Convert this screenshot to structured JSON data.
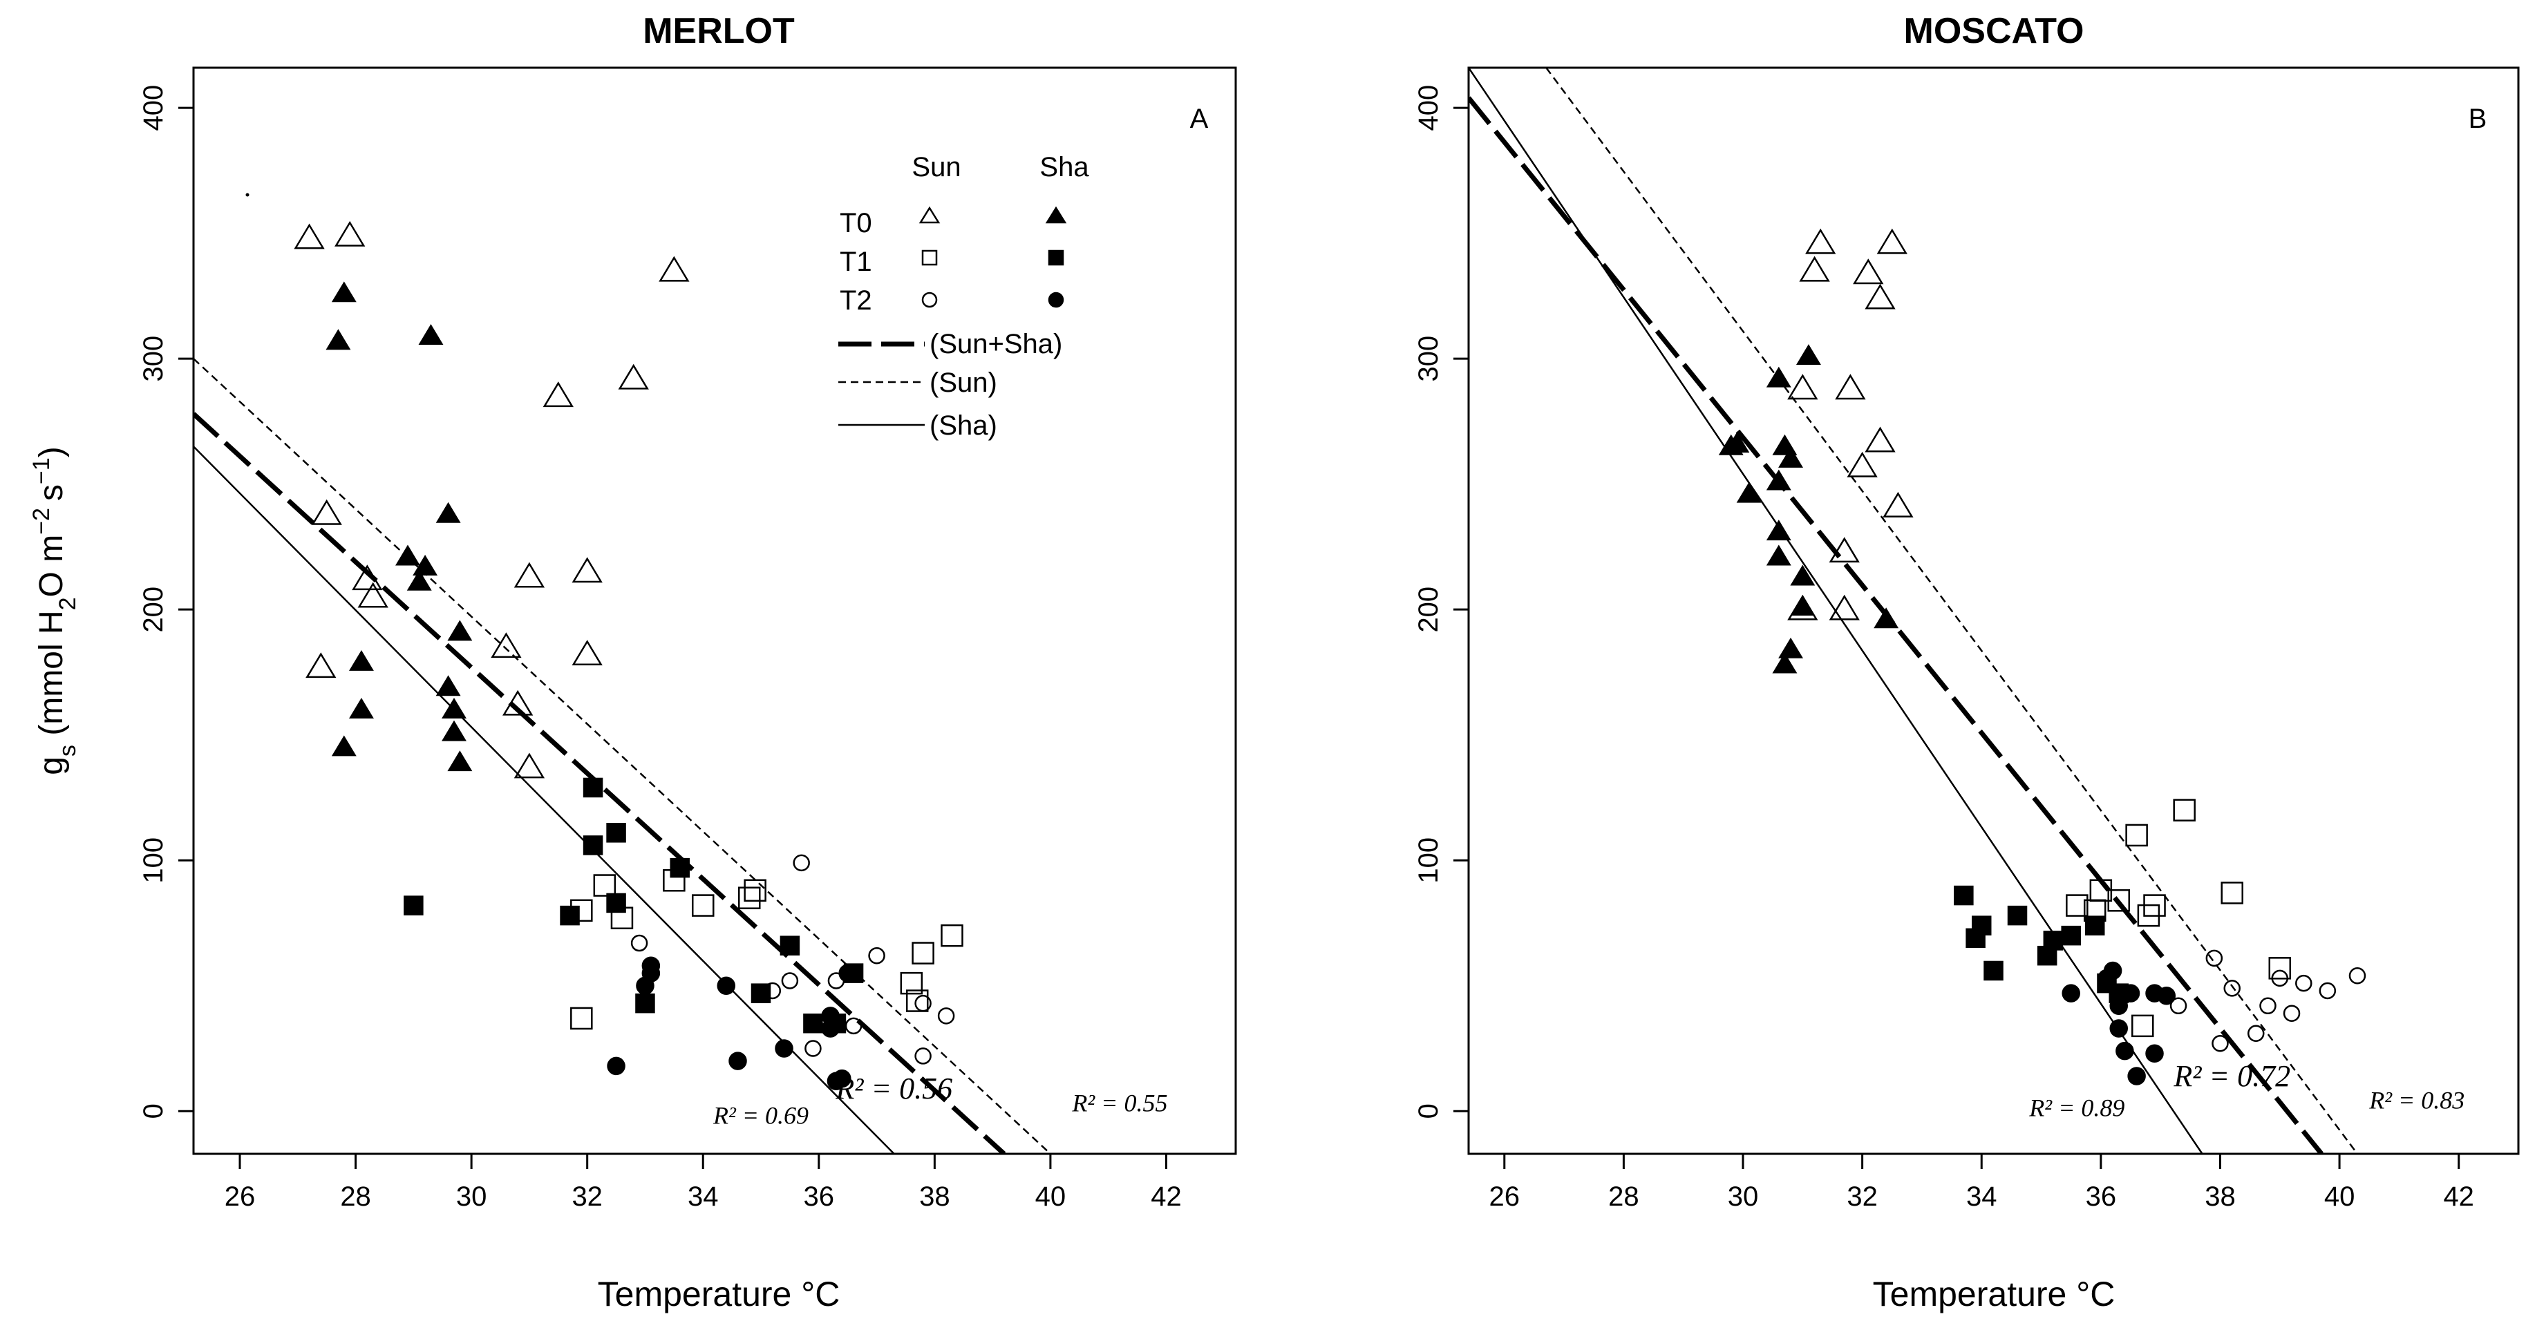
{
  "chart_data": [
    {
      "type": "scatter",
      "title": "MERLOT",
      "panel_label": "A",
      "xlabel": "Temperature °C",
      "ylabel": {
        "g": "g",
        "s": "s",
        "main": " (mmol H",
        "two": "2",
        "o_m": "O m",
        "neg2": "−2",
        "s2": "s",
        "neg1": "−1",
        "close": ")"
      },
      "xlim": [
        25.2,
        43.2
      ],
      "ylim": [
        -17,
        416
      ],
      "xticks": [
        "26",
        "28",
        "30",
        "32",
        "34",
        "36",
        "38",
        "40",
        "42"
      ],
      "yticks": [
        "0",
        "100",
        "200",
        "300",
        "400"
      ],
      "legend": {
        "col_sun": "Sun",
        "col_sha": "Sha",
        "rows": [
          "T0",
          "T1",
          "T2"
        ],
        "lines": [
          "(Sun+Sha)",
          "(Sun)",
          "(Sha)"
        ]
      },
      "series": [
        {
          "name": "T0 Sun",
          "marker": "triangle-open",
          "points": [
            [
              27.2,
              348
            ],
            [
              27.9,
              349
            ],
            [
              27.5,
              238
            ],
            [
              27.4,
              177
            ],
            [
              28.2,
              212
            ],
            [
              28.3,
              205
            ],
            [
              30.6,
              185
            ],
            [
              30.8,
              162
            ],
            [
              31.0,
              137
            ],
            [
              31.0,
              213
            ],
            [
              31.5,
              285
            ],
            [
              32.0,
              215
            ],
            [
              32.0,
              182
            ],
            [
              32.8,
              292
            ],
            [
              33.5,
              335
            ]
          ]
        },
        {
          "name": "T0 Sha",
          "marker": "triangle-filled",
          "points": [
            [
              27.8,
              326
            ],
            [
              27.7,
              307
            ],
            [
              27.8,
              145
            ],
            [
              28.1,
              179
            ],
            [
              28.1,
              160
            ],
            [
              28.9,
              221
            ],
            [
              29.1,
              211
            ],
            [
              29.2,
              217
            ],
            [
              29.3,
              309
            ],
            [
              29.6,
              238
            ],
            [
              29.6,
              169
            ],
            [
              29.7,
              160
            ],
            [
              29.7,
              151
            ],
            [
              29.8,
              191
            ],
            [
              29.8,
              139
            ]
          ]
        },
        {
          "name": "T1 Sun",
          "marker": "square-open",
          "points": [
            [
              31.9,
              37
            ],
            [
              31.9,
              80
            ],
            [
              32.3,
              90
            ],
            [
              32.6,
              77
            ],
            [
              33.5,
              92
            ],
            [
              34.0,
              82
            ],
            [
              34.8,
              85
            ],
            [
              34.9,
              88
            ],
            [
              37.6,
              51
            ],
            [
              37.7,
              44
            ],
            [
              37.8,
              63
            ],
            [
              38.3,
              70
            ]
          ]
        },
        {
          "name": "T1 Sha",
          "marker": "square-filled",
          "points": [
            [
              29.0,
              82
            ],
            [
              31.7,
              78
            ],
            [
              32.1,
              129
            ],
            [
              32.1,
              106
            ],
            [
              32.5,
              111
            ],
            [
              32.5,
              83
            ],
            [
              33.0,
              43
            ],
            [
              33.6,
              97
            ],
            [
              35.0,
              47
            ],
            [
              35.5,
              66
            ],
            [
              35.9,
              35
            ],
            [
              36.3,
              35
            ],
            [
              36.6,
              55
            ]
          ]
        },
        {
          "name": "T2 Sun",
          "marker": "circle-open",
          "points": [
            [
              32.9,
              67
            ],
            [
              35.2,
              48
            ],
            [
              35.5,
              52
            ],
            [
              35.7,
              99
            ],
            [
              35.9,
              25
            ],
            [
              36.3,
              52
            ],
            [
              36.6,
              34
            ],
            [
              37.0,
              62
            ],
            [
              37.8,
              22
            ],
            [
              37.8,
              43
            ],
            [
              38.2,
              38
            ]
          ]
        },
        {
          "name": "T2 Sha",
          "marker": "circle-filled",
          "points": [
            [
              32.5,
              18
            ],
            [
              33.0,
              50
            ],
            [
              33.1,
              55
            ],
            [
              33.1,
              58
            ],
            [
              34.4,
              50
            ],
            [
              34.6,
              20
            ],
            [
              35.4,
              25
            ],
            [
              36.2,
              38
            ],
            [
              36.2,
              33
            ],
            [
              36.3,
              12
            ],
            [
              36.4,
              13
            ],
            [
              36.5,
              55
            ]
          ]
        }
      ],
      "fits": [
        {
          "name": "(Sun+Sha)",
          "style": "long-dash",
          "from": [
            25.2,
            278
          ],
          "to": [
            39.2,
            -17
          ]
        },
        {
          "name": "(Sun)",
          "style": "short-dash",
          "from": [
            25.2,
            300
          ],
          "to": [
            40.0,
            -17
          ]
        },
        {
          "name": "(Sha)",
          "style": "solid",
          "from": [
            25.2,
            265
          ],
          "to": [
            37.3,
            -17
          ]
        }
      ],
      "r2_labels": [
        {
          "text": "R² = 0.69",
          "x": 35.0,
          "y": -5,
          "size": "small"
        },
        {
          "text": "R² = 0.56",
          "x": 37.3,
          "y": 5,
          "size": "large"
        },
        {
          "text": "R² = 0.55",
          "x": 41.2,
          "y": 0,
          "size": "small"
        }
      ]
    },
    {
      "type": "scatter",
      "title": "MOSCATO",
      "panel_label": "B",
      "xlabel": "Temperature °C",
      "xlim": [
        25.4,
        43.0
      ],
      "ylim": [
        -17,
        416
      ],
      "xticks": [
        "26",
        "28",
        "30",
        "32",
        "34",
        "36",
        "38",
        "40",
        "42"
      ],
      "yticks": [
        "0",
        "100",
        "200",
        "300",
        "400"
      ],
      "series": [
        {
          "name": "T0 Sun",
          "marker": "triangle-open",
          "points": [
            [
              31.0,
              288
            ],
            [
              31.0,
              200
            ],
            [
              31.2,
              335
            ],
            [
              31.3,
              346
            ],
            [
              31.7,
              223
            ],
            [
              31.7,
              200
            ],
            [
              31.8,
              288
            ],
            [
              32.0,
              257
            ],
            [
              32.1,
              334
            ],
            [
              32.3,
              324
            ],
            [
              32.3,
              267
            ],
            [
              32.5,
              346
            ],
            [
              32.6,
              241
            ]
          ]
        },
        {
          "name": "T0 Sha",
          "marker": "triangle-filled",
          "points": [
            [
              29.8,
              265
            ],
            [
              29.9,
              266
            ],
            [
              30.1,
              246
            ],
            [
              30.6,
              292
            ],
            [
              30.6,
              251
            ],
            [
              30.6,
              231
            ],
            [
              30.6,
              221
            ],
            [
              30.7,
              265
            ],
            [
              30.7,
              178
            ],
            [
              30.8,
              260
            ],
            [
              30.8,
              184
            ],
            [
              31.0,
              213
            ],
            [
              31.0,
              201
            ],
            [
              31.1,
              301
            ],
            [
              32.4,
              196
            ]
          ]
        },
        {
          "name": "T1 Sun",
          "marker": "square-open",
          "points": [
            [
              35.6,
              82
            ],
            [
              35.9,
              80
            ],
            [
              36.0,
              88
            ],
            [
              36.3,
              84
            ],
            [
              36.6,
              110
            ],
            [
              36.8,
              78
            ],
            [
              36.9,
              82
            ],
            [
              37.4,
              120
            ],
            [
              38.2,
              87
            ],
            [
              39.0,
              57
            ],
            [
              36.7,
              34
            ]
          ]
        },
        {
          "name": "T1 Sha",
          "marker": "square-filled",
          "points": [
            [
              33.7,
              86
            ],
            [
              33.9,
              69
            ],
            [
              34.0,
              74
            ],
            [
              34.2,
              56
            ],
            [
              34.6,
              78
            ],
            [
              35.1,
              62
            ],
            [
              35.2,
              68
            ],
            [
              35.5,
              70
            ],
            [
              35.9,
              74
            ],
            [
              36.1,
              51
            ],
            [
              36.3,
              47
            ]
          ]
        },
        {
          "name": "T2 Sun",
          "marker": "circle-open",
          "points": [
            [
              37.3,
              42
            ],
            [
              37.9,
              61
            ],
            [
              38.0,
              27
            ],
            [
              38.2,
              49
            ],
            [
              38.8,
              42
            ],
            [
              39.0,
              53
            ],
            [
              39.2,
              39
            ],
            [
              39.4,
              51
            ],
            [
              39.8,
              48
            ],
            [
              40.3,
              54
            ],
            [
              38.6,
              31
            ]
          ]
        },
        {
          "name": "T2 Sha",
          "marker": "circle-filled",
          "points": [
            [
              35.5,
              47
            ],
            [
              36.1,
              53
            ],
            [
              36.2,
              56
            ],
            [
              36.3,
              42
            ],
            [
              36.3,
              33
            ],
            [
              36.4,
              24
            ],
            [
              36.5,
              47
            ],
            [
              36.6,
              14
            ],
            [
              36.9,
              47
            ],
            [
              37.1,
              46
            ],
            [
              36.9,
              23
            ]
          ]
        }
      ],
      "fits": [
        {
          "name": "(Sun+Sha)",
          "style": "long-dash",
          "from": [
            25.4,
            404
          ],
          "to": [
            39.7,
            -17
          ]
        },
        {
          "name": "(Sun)",
          "style": "short-dash",
          "from": [
            26.7,
            416
          ],
          "to": [
            40.3,
            -17
          ]
        },
        {
          "name": "(Sha)",
          "style": "solid",
          "from": [
            25.4,
            416
          ],
          "to": [
            37.7,
            -17
          ]
        }
      ],
      "r2_labels": [
        {
          "text": "R² = 0.89",
          "x": 35.6,
          "y": -2,
          "size": "small"
        },
        {
          "text": "R² = 0.72",
          "x": 38.2,
          "y": 10,
          "size": "large"
        },
        {
          "text": "R² = 0.83",
          "x": 41.3,
          "y": 1,
          "size": "small"
        }
      ]
    }
  ]
}
